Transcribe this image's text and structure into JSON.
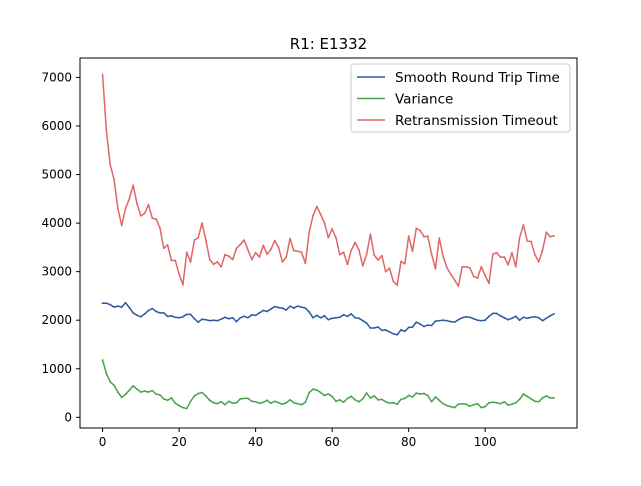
{
  "chart_data": {
    "type": "line",
    "title": "R1: E1332",
    "xlabel": "",
    "ylabel": "",
    "xlim": [
      -5.9,
      124
    ],
    "ylim": [
      -220,
      7400
    ],
    "xticks": [
      0,
      20,
      40,
      60,
      80,
      100
    ],
    "yticks": [
      0,
      1000,
      2000,
      3000,
      4000,
      5000,
      6000,
      7000
    ],
    "grid": false,
    "legend_position": "top-right",
    "x": [
      0,
      1,
      2,
      3,
      4,
      5,
      6,
      7,
      8,
      9,
      10,
      11,
      12,
      13,
      14,
      15,
      16,
      17,
      18,
      19,
      20,
      21,
      22,
      23,
      24,
      25,
      26,
      27,
      28,
      29,
      30,
      31,
      32,
      33,
      34,
      35,
      36,
      37,
      38,
      39,
      40,
      41,
      42,
      43,
      44,
      45,
      46,
      47,
      48,
      49,
      50,
      51,
      52,
      53,
      54,
      55,
      56,
      57,
      58,
      59,
      60,
      61,
      62,
      63,
      64,
      65,
      66,
      67,
      68,
      69,
      70,
      71,
      72,
      73,
      74,
      75,
      76,
      77,
      78,
      79,
      80,
      81,
      82,
      83,
      84,
      85,
      86,
      87,
      88,
      89,
      90,
      91,
      92,
      93,
      94,
      95,
      96,
      97,
      98,
      99,
      100,
      101,
      102,
      103,
      104,
      105,
      106,
      107,
      108,
      109,
      110,
      111,
      112,
      113,
      114,
      115,
      116,
      117,
      118
    ],
    "series": [
      {
        "name": "Smooth Round Trip Time",
        "color": "#2c5aa0",
        "values": [
          2350,
          2350,
          2320,
          2270,
          2290,
          2270,
          2360,
          2260,
          2150,
          2100,
          2070,
          2130,
          2200,
          2240,
          2180,
          2150,
          2150,
          2080,
          2090,
          2060,
          2050,
          2070,
          2120,
          2120,
          2030,
          1960,
          2020,
          2010,
          1990,
          2000,
          1990,
          2020,
          2060,
          2030,
          2050,
          1970,
          2050,
          2080,
          2050,
          2110,
          2100,
          2150,
          2200,
          2180,
          2230,
          2280,
          2260,
          2250,
          2210,
          2290,
          2250,
          2290,
          2270,
          2250,
          2170,
          2050,
          2100,
          2050,
          2090,
          2010,
          2040,
          2050,
          2060,
          2110,
          2080,
          2130,
          2050,
          2040,
          1990,
          1940,
          1840,
          1840,
          1860,
          1790,
          1800,
          1760,
          1720,
          1700,
          1800,
          1770,
          1850,
          1860,
          1960,
          1920,
          1870,
          1900,
          1890,
          1980,
          1990,
          2000,
          1990,
          1970,
          1960,
          2010,
          2050,
          2070,
          2060,
          2030,
          2000,
          1990,
          2000,
          2080,
          2140,
          2140,
          2090,
          2050,
          2010,
          2040,
          2080,
          2000,
          2060,
          2040,
          2060,
          2070,
          2050,
          1990,
          2040,
          2090,
          2130
        ]
      },
      {
        "name": "Variance",
        "color": "#4aa24a",
        "values": [
          1180,
          900,
          730,
          660,
          520,
          410,
          470,
          560,
          650,
          580,
          520,
          540,
          520,
          550,
          480,
          460,
          380,
          350,
          400,
          290,
          240,
          200,
          180,
          330,
          440,
          490,
          510,
          440,
          350,
          300,
          280,
          320,
          260,
          330,
          290,
          300,
          380,
          390,
          390,
          330,
          320,
          290,
          310,
          350,
          290,
          330,
          300,
          270,
          300,
          360,
          300,
          280,
          260,
          310,
          510,
          580,
          560,
          510,
          450,
          480,
          430,
          330,
          360,
          310,
          390,
          430,
          360,
          320,
          380,
          500,
          400,
          440,
          360,
          370,
          320,
          290,
          300,
          270,
          370,
          390,
          450,
          420,
          500,
          480,
          490,
          450,
          320,
          420,
          350,
          280,
          240,
          220,
          200,
          270,
          280,
          270,
          230,
          260,
          280,
          200,
          220,
          300,
          310,
          300,
          280,
          320,
          250,
          270,
          300,
          370,
          480,
          430,
          380,
          330,
          320,
          400,
          440,
          400,
          400
        ]
      },
      {
        "name": "Retransmission Timeout",
        "color": "#e06666",
        "values": [
          7060,
          5900,
          5200,
          4900,
          4300,
          3950,
          4300,
          4500,
          4780,
          4400,
          4150,
          4200,
          4380,
          4100,
          4080,
          3900,
          3480,
          3550,
          3230,
          3230,
          2950,
          2730,
          3400,
          3200,
          3650,
          3700,
          4000,
          3650,
          3250,
          3150,
          3200,
          3100,
          3350,
          3320,
          3250,
          3480,
          3560,
          3650,
          3450,
          3250,
          3390,
          3300,
          3540,
          3360,
          3460,
          3640,
          3500,
          3200,
          3300,
          3680,
          3430,
          3420,
          3400,
          3170,
          3810,
          4150,
          4340,
          4180,
          4000,
          3700,
          3880,
          3700,
          3350,
          3400,
          3150,
          3440,
          3600,
          3450,
          3120,
          3350,
          3770,
          3340,
          3240,
          3330,
          3000,
          3070,
          2800,
          2720,
          3210,
          3160,
          3730,
          3420,
          3890,
          3850,
          3720,
          3730,
          3360,
          3060,
          3690,
          3320,
          3080,
          2950,
          2830,
          2700,
          3100,
          3100,
          3080,
          2900,
          2870,
          3100,
          2920,
          2760,
          3360,
          3390,
          3300,
          3300,
          3140,
          3390,
          3100,
          3700,
          3960,
          3630,
          3620,
          3350,
          3200,
          3440,
          3810,
          3720,
          3740
        ]
      }
    ]
  }
}
